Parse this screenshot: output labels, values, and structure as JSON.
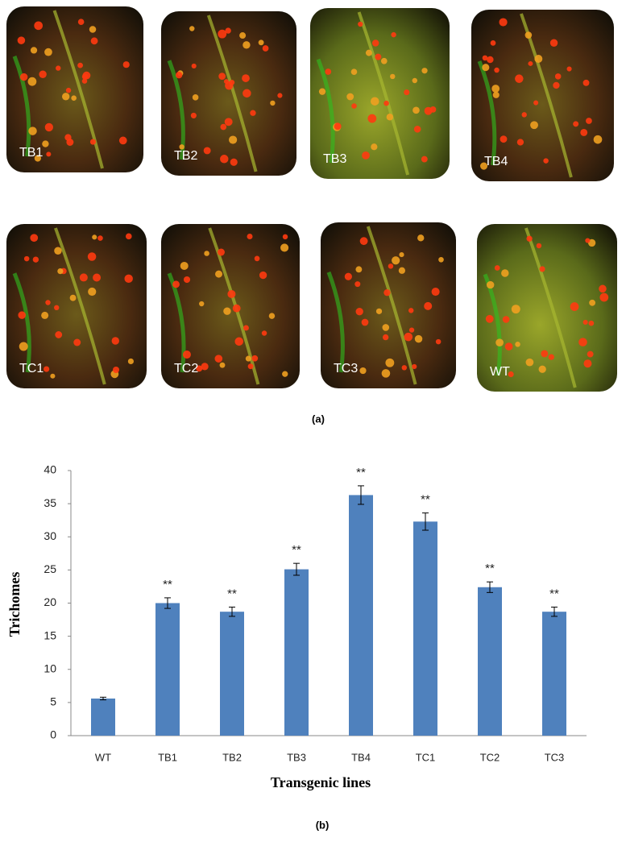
{
  "panel_a": {
    "labels": [
      "TB1",
      "TB2",
      "TB3",
      "TB4",
      "TC1",
      "TC2",
      "TC3",
      "WT"
    ],
    "caption": "(a)"
  },
  "chart_data": {
    "type": "bar",
    "ylabel": "Trichomes",
    "xlabel": "Transgenic lines",
    "categories": [
      "WT",
      "TB1",
      "TB2",
      "TB3",
      "TB4",
      "TC1",
      "TC2",
      "TC3"
    ],
    "values": [
      5.6,
      20,
      18.7,
      25.1,
      36.3,
      32.3,
      22.4,
      18.7
    ],
    "errors": [
      0.2,
      0.8,
      0.7,
      0.9,
      1.4,
      1.3,
      0.8,
      0.7
    ],
    "significance": [
      null,
      "**",
      "**",
      "**",
      "**",
      "**",
      "**",
      "**"
    ],
    "color": "#4f81bd",
    "ylim": [
      0,
      40
    ],
    "yticks": [
      0,
      5,
      10,
      15,
      20,
      25,
      30,
      35,
      40
    ],
    "grid": false
  },
  "caption_b": "(b)"
}
